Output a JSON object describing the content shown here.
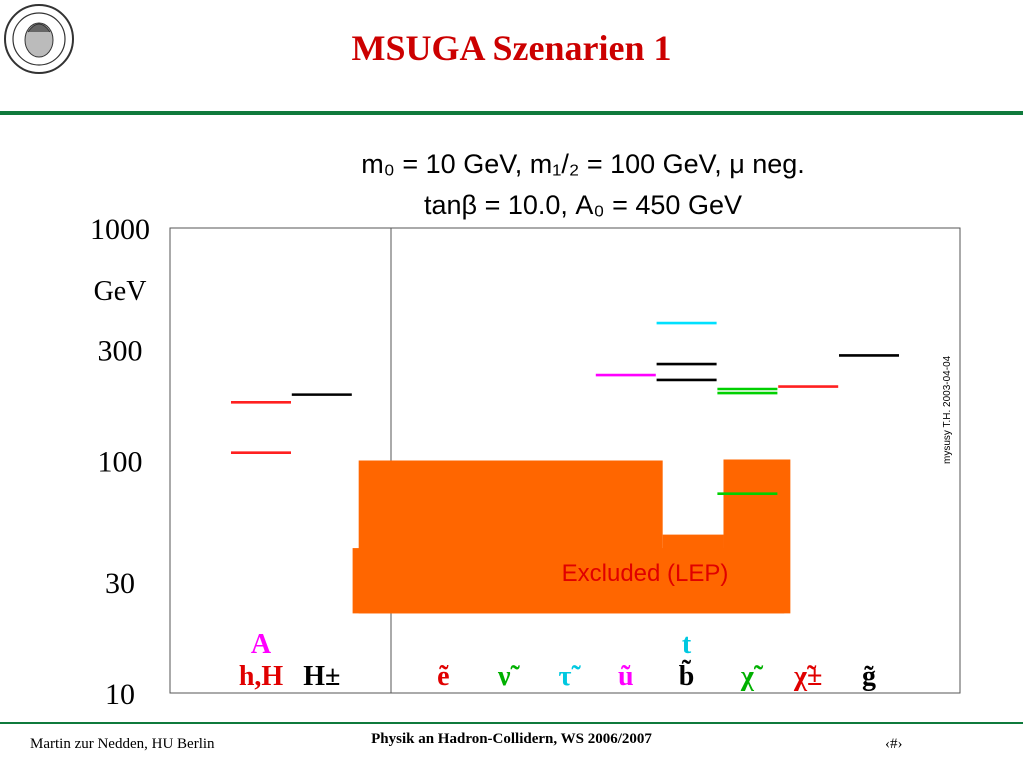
{
  "slide": {
    "title": "MSUGA Szenarien 1",
    "title_color": "#cc0000",
    "logo_icon": "university-seal-icon",
    "footer_left": "Martin zur Nedden, HU Berlin",
    "footer_center": "Physik an Hadron-Collidern, WS 2006/2007",
    "footer_right": "‹#›",
    "rule_color": "#0f7a3c"
  },
  "chart_data": {
    "type": "level-spectrum",
    "header_line1": "m₀ = 10 GeV,  m₁/₂ = 100 GeV,  μ neg.",
    "header_line2": "tanβ = 10.0,  A₀ = 450 GeV",
    "y_unit": "GeV",
    "y_scale": "log",
    "ylim": [
      10,
      1000
    ],
    "y_ticks": [
      {
        "value": 1000,
        "label": "1000"
      },
      {
        "value": 300,
        "label": "300"
      },
      {
        "value": 100,
        "label": "100"
      },
      {
        "value": 30,
        "label": "30"
      },
      {
        "value": 10,
        "label": "10"
      }
    ],
    "side_label": "mysusy  T.H. 2003-04-04",
    "excluded_label": "Excluded (LEP)",
    "excluded_color": "#ff6600",
    "excluded_regions": [
      {
        "x0": 2.0,
        "x1": 9.1,
        "y_low": 22,
        "y_high": 42
      },
      {
        "x0": 2.1,
        "x1": 7.1,
        "y_low": 22,
        "y_high": 100
      },
      {
        "x0": 7.1,
        "x1": 8.1,
        "y_low": 22,
        "y_high": 48
      },
      {
        "x0": 8.1,
        "x1": 9.2,
        "y_low": 22,
        "y_high": 101
      }
    ],
    "columns": [
      {
        "x": 0,
        "labels": [
          {
            "text": "A",
            "color": "#ff00ff"
          },
          {
            "text": "h,H",
            "color": "#e00000"
          }
        ]
      },
      {
        "x": 1,
        "labels": [
          {
            "text": "H±",
            "color": "#000000"
          }
        ]
      },
      {
        "x": 3,
        "labels": [
          {
            "text": "ẽ",
            "color": "#e00000"
          }
        ]
      },
      {
        "x": 4,
        "labels": [
          {
            "text": "ν̃",
            "color": "#00b000"
          }
        ]
      },
      {
        "x": 5,
        "labels": [
          {
            "text": "τ̃",
            "color": "#00c8e0"
          }
        ]
      },
      {
        "x": 6,
        "labels": [
          {
            "text": "ũ",
            "color": "#ff00ff"
          }
        ]
      },
      {
        "x": 7,
        "labels": [
          {
            "text": "t",
            "color": "#00c8e0"
          },
          {
            "text": "b̃",
            "color": "#000000"
          }
        ]
      },
      {
        "x": 8,
        "labels": [
          {
            "text": "χ̃",
            "color": "#00b000"
          }
        ]
      },
      {
        "x": 9,
        "labels": [
          {
            "text": "χ̃±",
            "color": "#e00000"
          }
        ]
      },
      {
        "x": 10,
        "labels": [
          {
            "text": "g̃",
            "color": "#000000"
          }
        ]
      }
    ],
    "levels": [
      {
        "x": 0,
        "mass": 108,
        "color": "#ff2020"
      },
      {
        "x": 0,
        "mass": 178,
        "color": "#ff2020"
      },
      {
        "x": 1,
        "mass": 192,
        "color": "#000000"
      },
      {
        "x": 6,
        "mass": 233,
        "color": "#ff00ff"
      },
      {
        "x": 7,
        "mass": 222,
        "color": "#000000"
      },
      {
        "x": 7,
        "mass": 260,
        "color": "#000000"
      },
      {
        "x": 7,
        "mass": 390,
        "color": "#00e0ff"
      },
      {
        "x": 8,
        "mass": 72,
        "color": "#00d000"
      },
      {
        "x": 8,
        "mass": 195,
        "color": "#00d000"
      },
      {
        "x": 8,
        "mass": 203,
        "color": "#00d000"
      },
      {
        "x": 9,
        "mass": 208,
        "color": "#ff2020"
      },
      {
        "x": 10,
        "mass": 283,
        "color": "#000000"
      }
    ]
  }
}
